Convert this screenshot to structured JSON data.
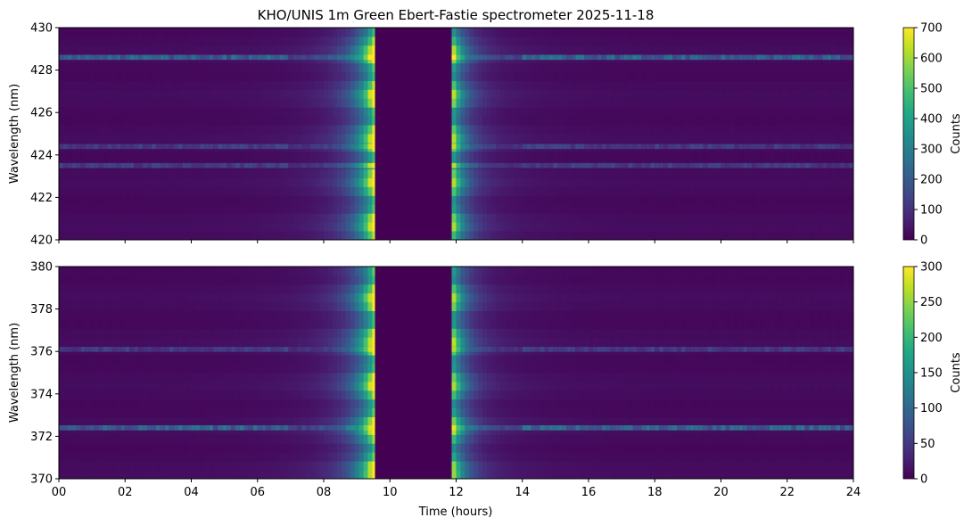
{
  "chart_data": {
    "title": "KHO/UNIS 1m Green Ebert-Fastie spectrometer 2025-11-18",
    "type": "heatmap",
    "colormap": "viridis",
    "xlabel": "Time (hours)",
    "xlim": [
      0,
      24
    ],
    "xticks": [
      "00",
      "02",
      "04",
      "06",
      "08",
      "10",
      "12",
      "14",
      "16",
      "18",
      "20",
      "22",
      "24"
    ],
    "xtick_values": [
      0,
      2,
      4,
      6,
      8,
      10,
      12,
      14,
      16,
      18,
      20,
      22,
      24
    ],
    "gap_hours": [
      9.55,
      11.82
    ],
    "panels": [
      {
        "ylabel": "Wavelength (nm)",
        "ylim": [
          420,
          430
        ],
        "yticks": [
          "420",
          "422",
          "424",
          "426",
          "428",
          "430"
        ],
        "ytick_values": [
          420,
          422,
          424,
          426,
          428,
          430
        ],
        "colorbar": {
          "label": "Counts",
          "range": [
            0,
            700
          ],
          "ticks": [
            "0",
            "100",
            "200",
            "300",
            "400",
            "500",
            "600",
            "700"
          ],
          "tick_values": [
            0,
            100,
            200,
            300,
            400,
            500,
            600,
            700
          ]
        },
        "bright_lines_nm": [
          428.6,
          424.4,
          423.5
        ],
        "peak_counts": 700
      },
      {
        "ylabel": "Wavelength (nm)",
        "ylim": [
          370,
          380
        ],
        "yticks": [
          "370",
          "372",
          "374",
          "376",
          "378",
          "380"
        ],
        "ytick_values": [
          370,
          372,
          374,
          376,
          378,
          380
        ],
        "colorbar": {
          "label": "Counts",
          "range": [
            0,
            300
          ],
          "ticks": [
            "0",
            "50",
            "100",
            "150",
            "200",
            "250",
            "300"
          ],
          "tick_values": [
            0,
            50,
            100,
            150,
            200,
            250,
            300
          ]
        },
        "bright_lines_nm": [
          372.4,
          376.1
        ],
        "peak_counts": 300
      }
    ]
  }
}
